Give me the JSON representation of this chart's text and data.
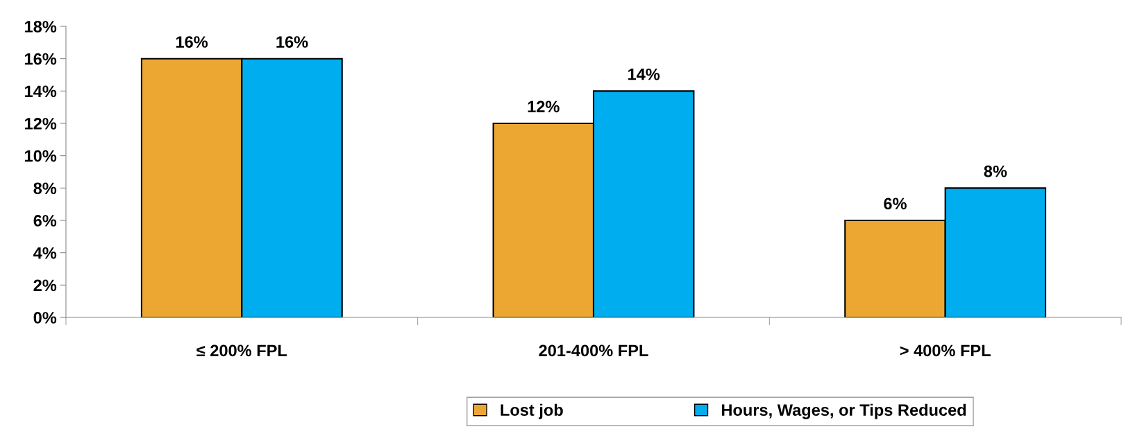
{
  "chart_data": {
    "type": "bar",
    "categories": [
      "≤ 200% FPL",
      "201-400% FPL",
      "> 400% FPL"
    ],
    "series": [
      {
        "name": "Lost job",
        "color": "#eca733",
        "values": [
          16,
          12,
          6
        ],
        "value_labels": [
          "16%",
          "12%",
          "6%"
        ]
      },
      {
        "name": "Hours, Wages, or Tips Reduced",
        "color": "#00adef",
        "values": [
          16,
          14,
          8
        ],
        "value_labels": [
          "16%",
          "14%",
          "8%"
        ]
      }
    ],
    "ylim": [
      0,
      18
    ],
    "yticks": [
      {
        "value": 0,
        "label": "0%"
      },
      {
        "value": 2,
        "label": "2%"
      },
      {
        "value": 4,
        "label": "4%"
      },
      {
        "value": 6,
        "label": "6%"
      },
      {
        "value": 8,
        "label": "8%"
      },
      {
        "value": 10,
        "label": "10%"
      },
      {
        "value": 12,
        "label": "12%"
      },
      {
        "value": 14,
        "label": "14%"
      },
      {
        "value": 16,
        "label": "16%"
      },
      {
        "value": 18,
        "label": "18%"
      }
    ],
    "grid": false,
    "legend": "bottom"
  }
}
